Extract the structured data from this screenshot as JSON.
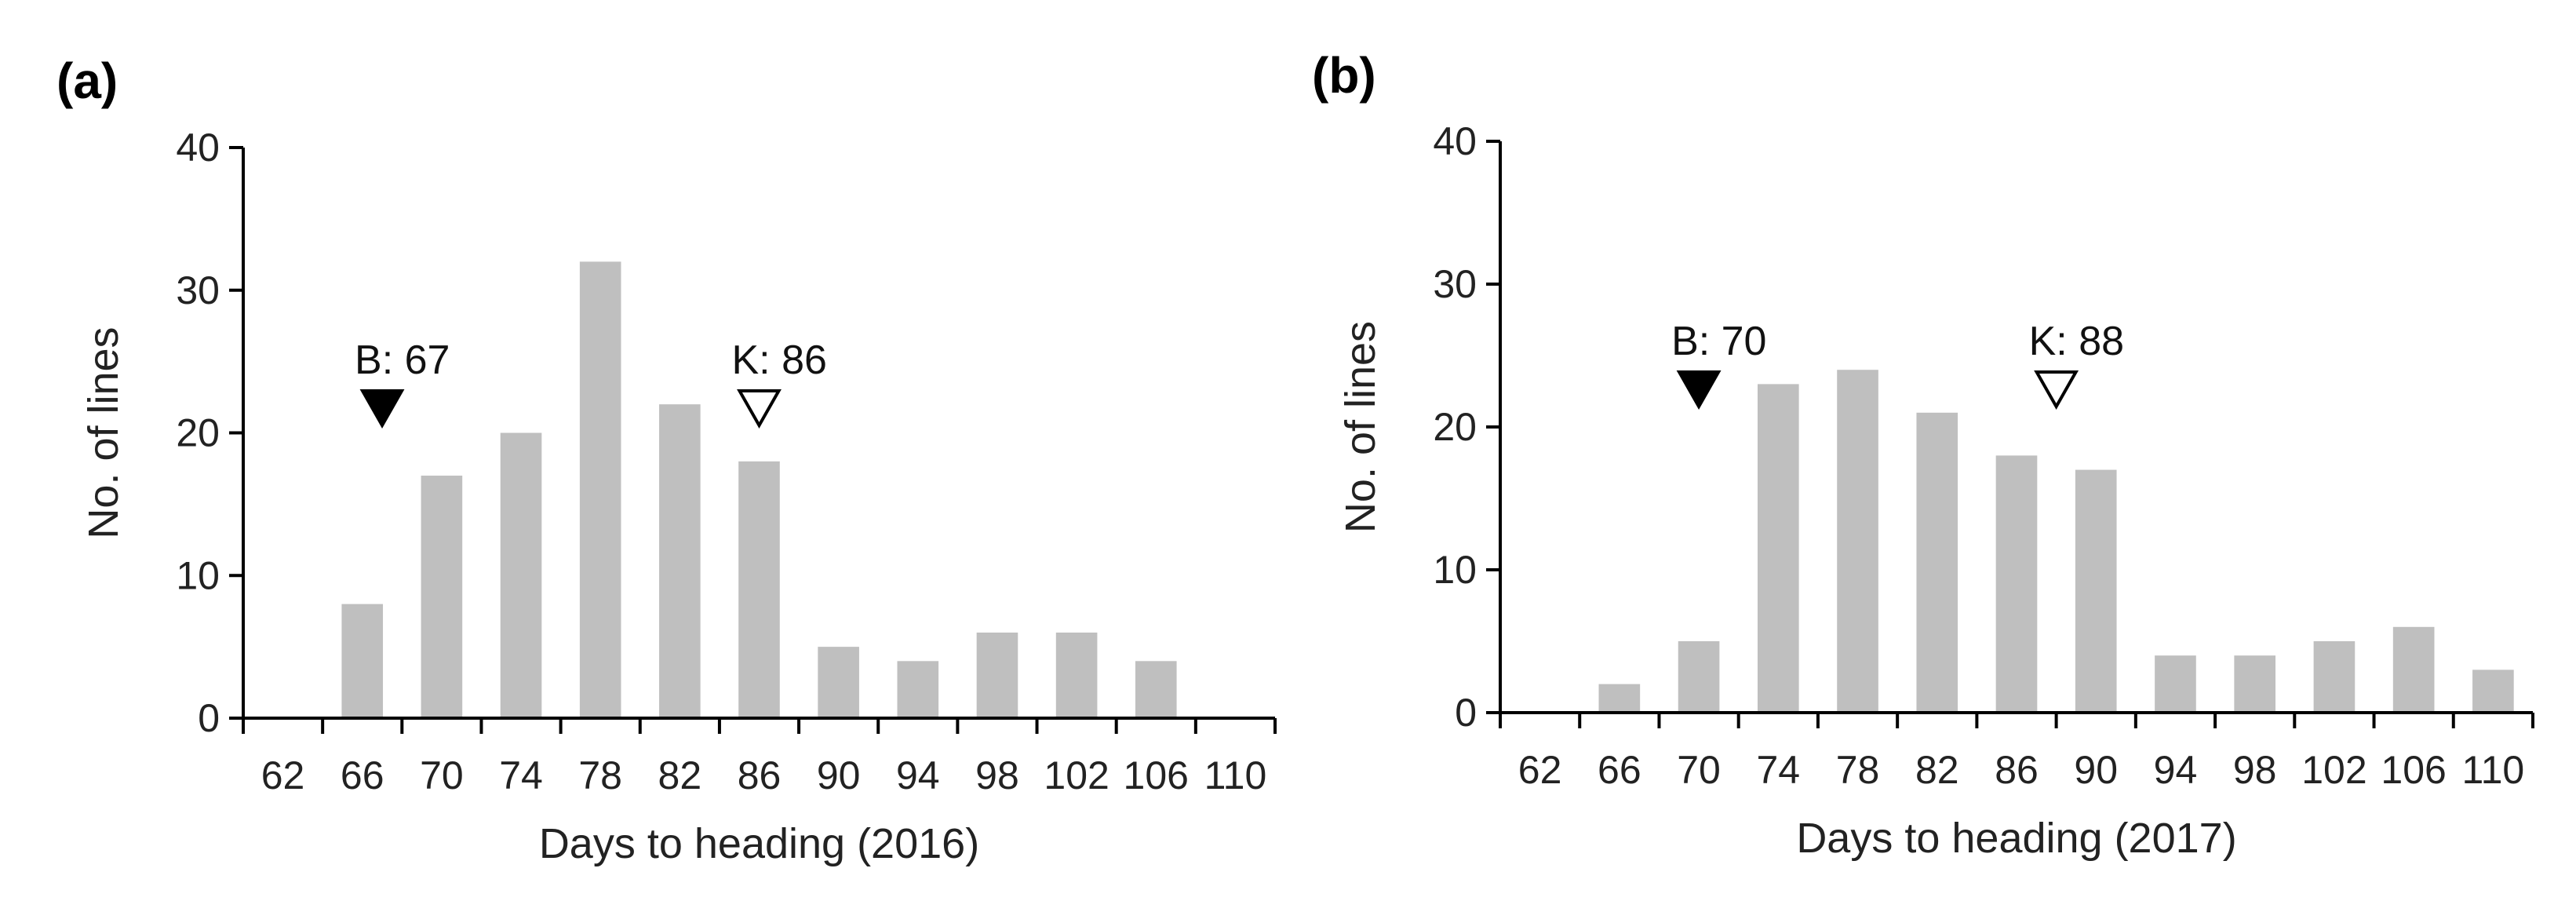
{
  "chart_data": [
    {
      "type": "bar",
      "panel_label": "(a)",
      "title": "",
      "xlabel": "Days to heading (2016)",
      "ylabel": "No. of lines",
      "ylim": [
        0,
        40
      ],
      "yticks": [
        "0",
        "10",
        "20",
        "30",
        "40"
      ],
      "xticks": [
        "62",
        "66",
        "70",
        "74",
        "78",
        "82",
        "86",
        "90",
        "94",
        "98",
        "102",
        "106",
        "110"
      ],
      "categories": [
        "62",
        "66",
        "70",
        "74",
        "78",
        "82",
        "86",
        "90",
        "94",
        "98",
        "102",
        "106",
        "110"
      ],
      "values": [
        0,
        8,
        17,
        20,
        32,
        22,
        18,
        5,
        4,
        6,
        6,
        4,
        0
      ],
      "bar_color": "#bfbfbf",
      "markers": [
        {
          "label": "B: 67",
          "x": 67,
          "style": "filled"
        },
        {
          "label": "K: 86",
          "x": 86,
          "style": "open"
        }
      ]
    },
    {
      "type": "bar",
      "panel_label": "(b)",
      "title": "",
      "xlabel": "Days to heading (2017)",
      "ylabel": "No. of lines",
      "ylim": [
        0,
        40
      ],
      "yticks": [
        "0",
        "10",
        "20",
        "30",
        "40"
      ],
      "xticks": [
        "62",
        "66",
        "70",
        "74",
        "78",
        "82",
        "86",
        "90",
        "94",
        "98",
        "102",
        "106",
        "110"
      ],
      "categories": [
        "62",
        "66",
        "70",
        "74",
        "78",
        "82",
        "86",
        "90",
        "94",
        "98",
        "102",
        "106",
        "110"
      ],
      "values": [
        0,
        2,
        5,
        23,
        24,
        21,
        18,
        17,
        4,
        4,
        5,
        6,
        3
      ],
      "bar_color": "#bfbfbf",
      "markers": [
        {
          "label": "B: 70",
          "x": 70,
          "style": "filled"
        },
        {
          "label": "K: 88",
          "x": 88,
          "style": "open"
        }
      ]
    }
  ]
}
